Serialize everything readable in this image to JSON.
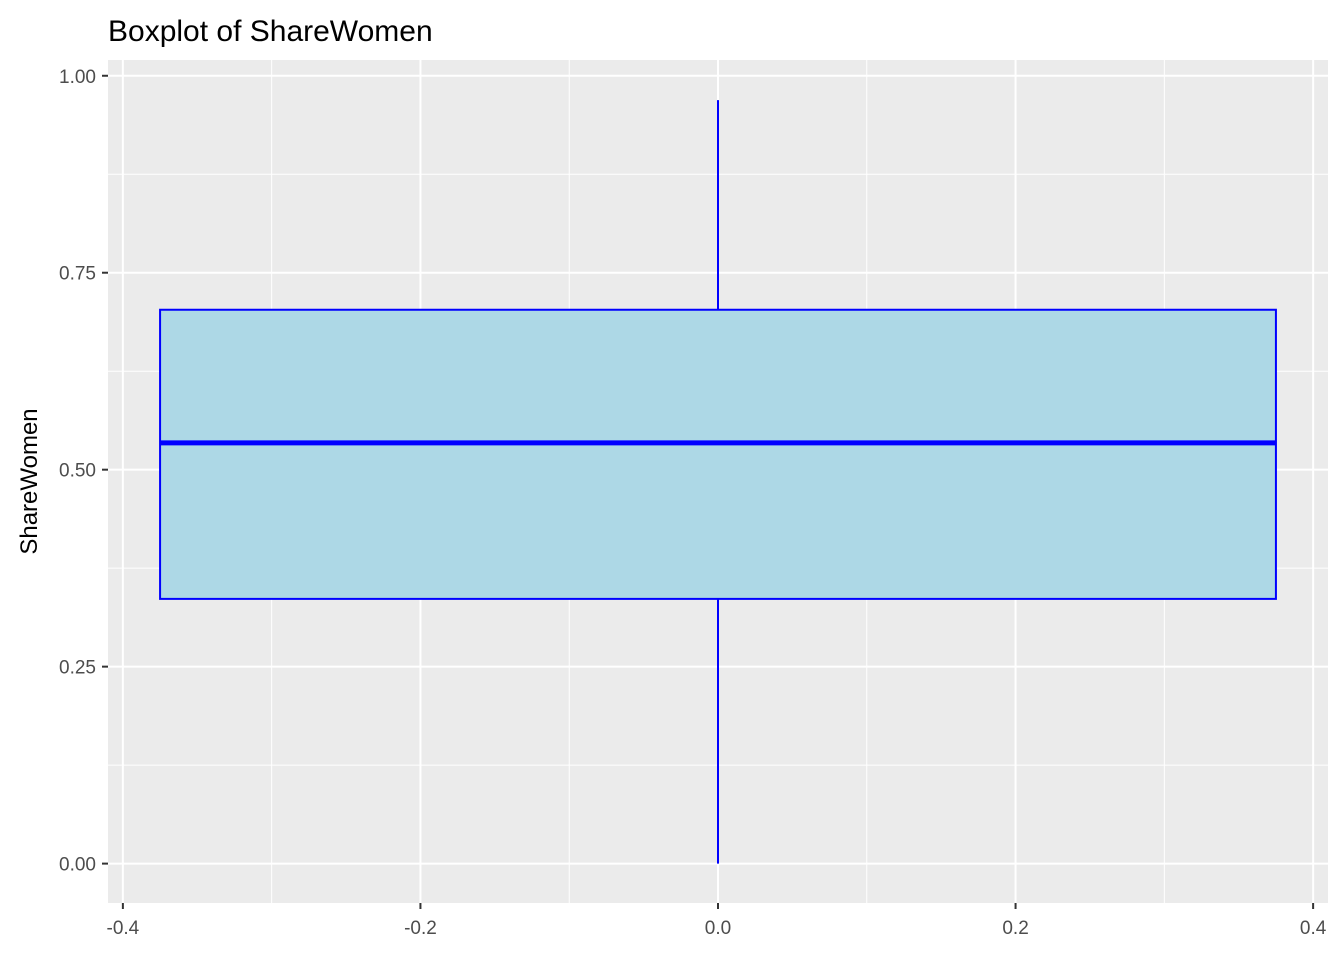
{
  "chart_data": {
    "type": "boxplot",
    "title": "Boxplot of ShareWomen",
    "xlabel": "",
    "ylabel": "ShareWomen",
    "xlim": [
      -0.41,
      0.41
    ],
    "ylim": [
      -0.05,
      1.02
    ],
    "x_ticks": [
      -0.4,
      -0.2,
      0.0,
      0.2,
      0.4
    ],
    "x_tick_labels": [
      "-0.4",
      "-0.2",
      "0.0",
      "0.2",
      "0.4"
    ],
    "y_ticks": [
      0.0,
      0.25,
      0.5,
      0.75,
      1.0
    ],
    "y_tick_labels": [
      "0.00",
      "0.25",
      "0.50",
      "0.75",
      "1.00"
    ],
    "grid": true,
    "box": {
      "x_center": 0.0,
      "x_left": -0.375,
      "x_right": 0.375,
      "min": 0.0,
      "q1": 0.336,
      "median": 0.534,
      "q3": 0.703,
      "max": 0.969
    },
    "colors": {
      "panel_background": "#EBEBEB",
      "grid": "#FFFFFF",
      "box_fill": "#ADD8E6",
      "box_outline": "#0000FF"
    }
  }
}
